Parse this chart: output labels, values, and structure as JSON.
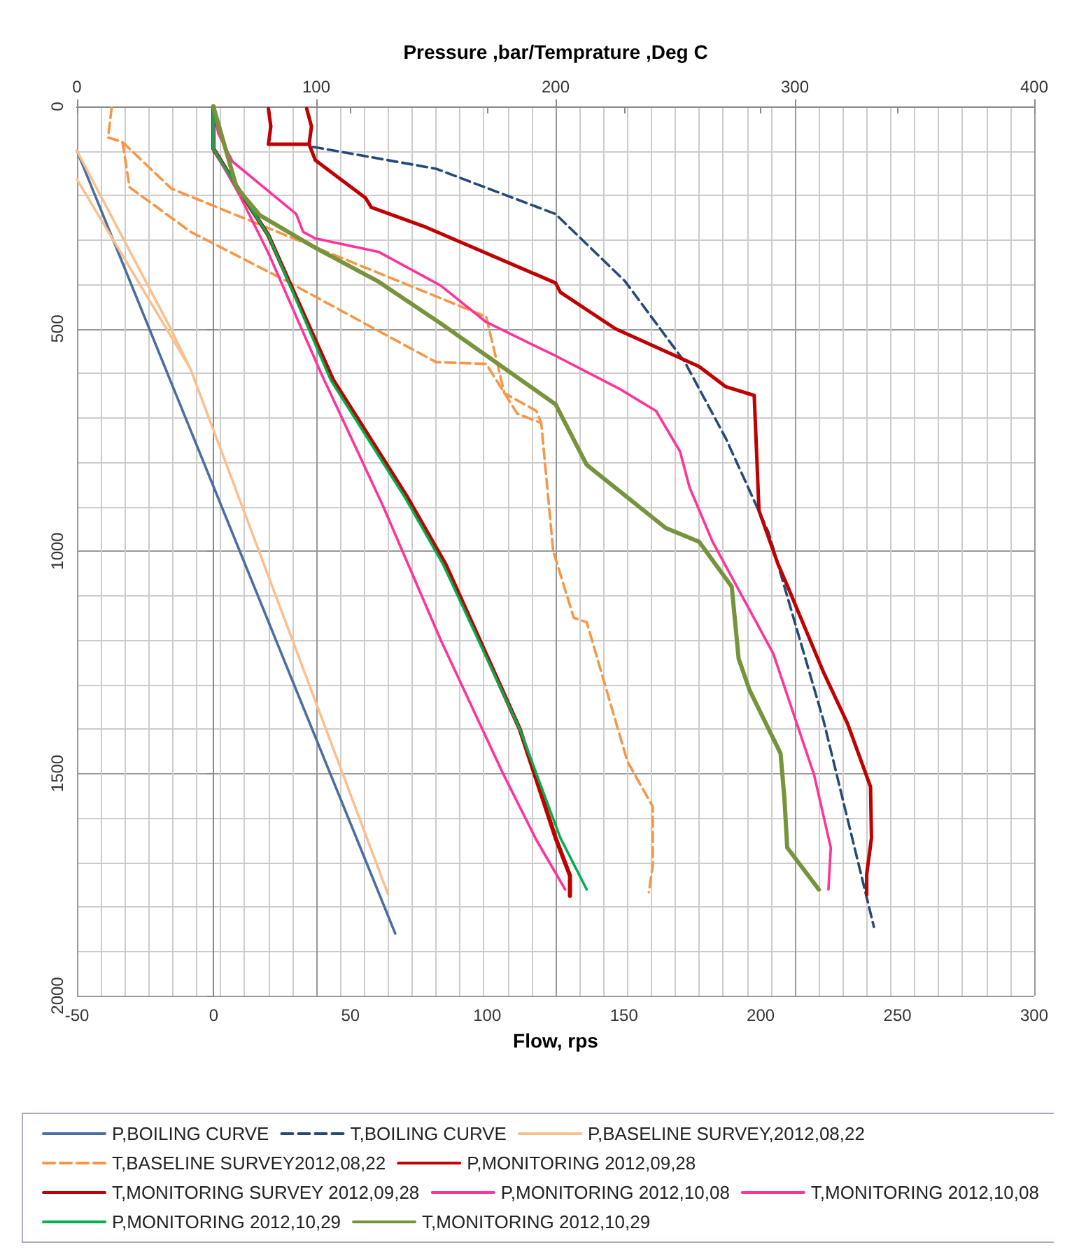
{
  "chart_data": {
    "type": "line",
    "xlabel": "Flow, rps",
    "x2label": "Pressure ,bar/Temprature ,Deg C",
    "xlim": [
      -50,
      300
    ],
    "xticks": [
      -50,
      0,
      50,
      100,
      150,
      200,
      250,
      300
    ],
    "x2lim": [
      0,
      400
    ],
    "x2ticks": [
      0,
      100,
      200,
      300,
      400
    ],
    "ylim": [
      2000,
      0
    ],
    "yticks": [
      0,
      500,
      1000,
      1500,
      2000
    ],
    "grid": true,
    "legend": "bottom",
    "marker": "none",
    "series": [
      {
        "name": "P,BOILING CURVE",
        "color": "#4a6ea0",
        "axis": "x2",
        "line_style": "solid",
        "x": [
          0,
          133
        ],
        "values": [
          100,
          1860
        ]
      },
      {
        "name": "T,BOILING CURVE",
        "color": "#254a7a",
        "axis": "x2",
        "line_style": "dashed",
        "x": [
          98.6,
          150,
          200,
          229,
          254,
          271,
          289,
          312,
          333
        ],
        "values": [
          91,
          140,
          242,
          393,
          575,
          745,
          958,
          1382,
          1845
        ]
      },
      {
        "name": "P,BASELINE SURVEY,2012,08,22",
        "color": "#fac08f",
        "axis": "x2",
        "line_style": "solid",
        "x": [
          0,
          47.4,
          null,
          0,
          38.6,
          47.4,
          130
        ],
        "values": [
          164,
          590,
          null,
          100,
          494,
          590,
          1772
        ]
      },
      {
        "name": "T,BASELINE SURVEY2012,08,22",
        "color": "#f79646",
        "axis": "x2",
        "line_style": "dashed",
        "x": [
          14.5,
          13,
          19,
          22,
          47.5,
          88,
          150,
          171,
          184,
          194,
          199,
          207.6,
          213,
          230,
          240.6,
          240.6,
          239,
          null,
          19,
          39.5,
          107,
          171,
          178.6,
          192,
          194
        ],
        "values": [
          3,
          70,
          80,
          182,
          282,
          394,
          575,
          579,
          691,
          712,
          1000,
          1150,
          1160,
          1473,
          1575,
          1706,
          1767,
          null,
          80,
          185,
          333,
          473,
          645,
          685,
          712
        ]
      },
      {
        "name": "P,MONITORING 2012,09,28",
        "color": "#c00000",
        "axis": "x2",
        "line_style": "solid",
        "x": [
          57,
          57,
          67,
          80,
          107,
          138,
          154,
          185,
          200,
          206,
          206
        ],
        "values": [
          0,
          95,
          182,
          290,
          615,
          879,
          1030,
          1400,
          1645,
          1730,
          1775
        ]
      },
      {
        "name": "T,MONITORING SURVEY 2012,09,28",
        "color": "#c00000",
        "axis": "x2",
        "line_style": "solid",
        "x": [
          80,
          81,
          80,
          97,
          98,
          96,
          null,
          97,
          99.6,
          120.6,
          123,
          146,
          200,
          202,
          225,
          260,
          271,
          283,
          285,
          293,
          297,
          312,
          322,
          331.6,
          332,
          330,
          330
        ],
        "values": [
          5,
          45,
          85,
          85,
          45,
          5,
          null,
          85,
          121,
          206,
          227,
          272,
          397,
          418,
          500,
          585,
          630,
          650,
          909,
          1030,
          1080,
          1273,
          1388,
          1530,
          1645,
          1727,
          1773
        ]
      },
      {
        "name": "P,MONITORING 2012,10,08",
        "color": "#ff3399",
        "axis": "x2",
        "line_style": "solid",
        "x": [
          57,
          57,
          68,
          80,
          102,
          128,
          152,
          178,
          192,
          204
        ],
        "values": [
          0,
          95,
          200,
          330,
          600,
          900,
          1200,
          1500,
          1650,
          1761
        ]
      },
      {
        "name": "T,MONITORING 2012,10,08",
        "color": "#ff3399",
        "axis": "x2",
        "line_style": "solid",
        "x": [
          57,
          59,
          65,
          91.6,
          94.5,
          99.6,
          126,
          152,
          171,
          200,
          227,
          242,
          252,
          256,
          265.6,
          291,
          308,
          315,
          314
        ],
        "values": [
          0,
          60,
          124,
          242,
          282,
          297,
          327,
          403,
          485,
          561,
          636,
          685,
          776,
          857,
          979,
          1231,
          1503,
          1667,
          1761
        ]
      },
      {
        "name": "P,MONITORING 2012,10,29",
        "color": "#00b050",
        "axis": "x2",
        "line_style": "solid",
        "x": [
          57,
          57,
          67,
          80,
          106,
          137,
          153,
          185,
          202,
          213
        ],
        "values": [
          0,
          95,
          182,
          290,
          615,
          879,
          1030,
          1400,
          1645,
          1761
        ]
      },
      {
        "name": "T,MONITORING 2012,10,29",
        "color": "#77933c",
        "axis": "x2",
        "line_style": "solid",
        "x": [
          57,
          66.7,
          76.5,
          99.6,
          126,
          152,
          200,
          213,
          246,
          260,
          273.6,
          276.5,
          281,
          294,
          295.6,
          296.8,
          310
        ],
        "values": [
          0,
          182,
          245,
          318,
          394,
          488,
          670,
          806,
          948,
          979,
          1080,
          1242,
          1312,
          1455,
          1555,
          1667,
          1761
        ]
      }
    ]
  }
}
